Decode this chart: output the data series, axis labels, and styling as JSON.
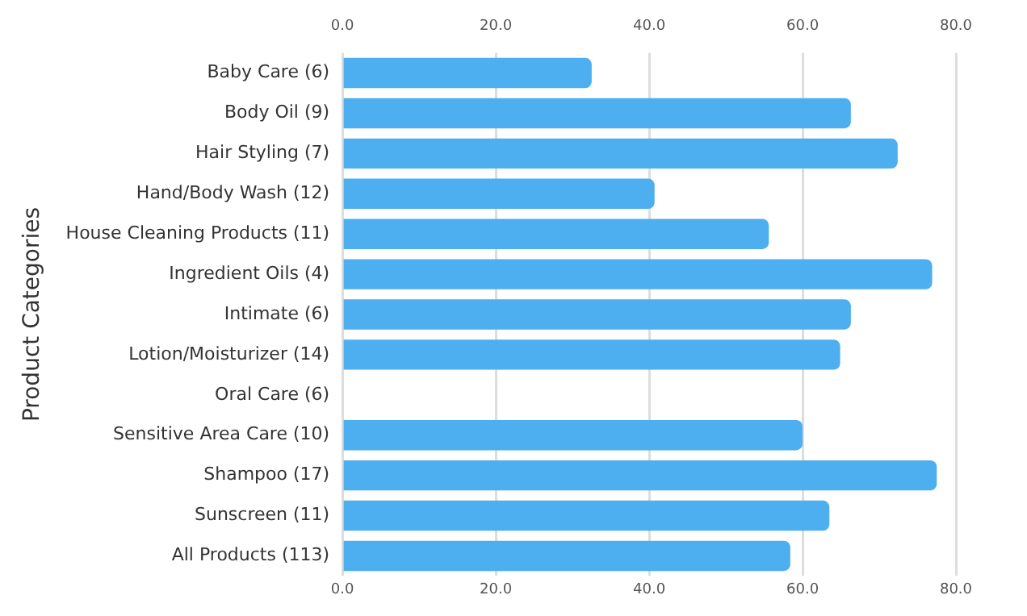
{
  "chart_data": {
    "type": "bar",
    "orientation": "horizontal",
    "ylabel": "Product Categories",
    "categories": [
      "Baby Care (6)",
      "Body Oil (9)",
      "Hair Styling (7)",
      "Hand/Body Wash (12)",
      "House Cleaning Products (11)",
      "Ingredient Oils (4)",
      "Intimate (6)",
      "Lotion/Moisturizer (14)",
      "Oral Care (6)",
      "Sensitive Area Care (10)",
      "Shampoo (17)",
      "Sunscreen (11)",
      "All Products (113)"
    ],
    "values": [
      32.5,
      66.3,
      72.4,
      40.7,
      55.6,
      76.9,
      66.3,
      64.9,
      0,
      60.0,
      77.5,
      63.5,
      58.4
    ],
    "color": "#4daef0",
    "xlim": [
      0,
      80
    ],
    "xticks": [
      {
        "value": 0,
        "label": "0.0"
      },
      {
        "value": 20,
        "label": "20.0"
      },
      {
        "value": 40,
        "label": "40.0"
      },
      {
        "value": 60,
        "label": "60.0"
      },
      {
        "value": 80,
        "label": "80.0"
      }
    ],
    "x2lim": [
      0,
      80
    ],
    "x2ticks": [
      {
        "value": 0,
        "label": "0.0"
      },
      {
        "value": 20,
        "label": "20.0"
      },
      {
        "value": 40,
        "label": "40.0"
      },
      {
        "value": 60,
        "label": "60.0"
      },
      {
        "value": 80,
        "label": "80.0"
      }
    ],
    "grid": "x",
    "legend": false
  }
}
